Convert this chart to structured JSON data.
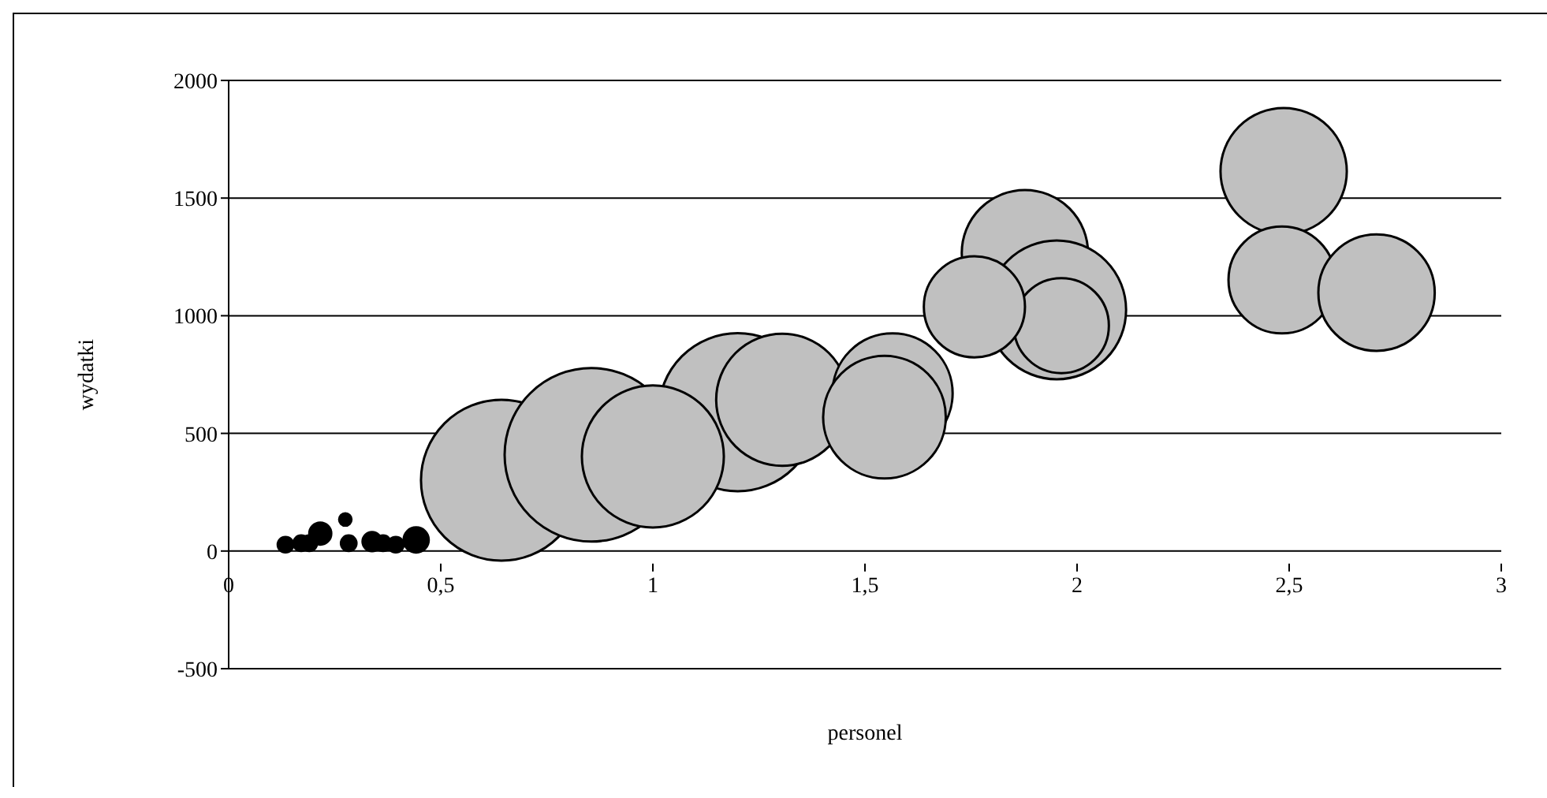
{
  "chart_data": {
    "type": "bubble",
    "xlabel": "personel",
    "ylabel": "wydatki",
    "xlim": [
      0,
      3
    ],
    "xticks": [
      {
        "value": 0,
        "label": "0"
      },
      {
        "value": 0.5,
        "label": "0,5"
      },
      {
        "value": 1,
        "label": "1"
      },
      {
        "value": 1.5,
        "label": "1,5"
      },
      {
        "value": 2,
        "label": "2"
      },
      {
        "value": 2.5,
        "label": "2,5"
      },
      {
        "value": 3,
        "label": "3"
      }
    ],
    "ylim": [
      -500,
      2000
    ],
    "yticks": [
      -500,
      0,
      500,
      1000,
      1500,
      2000
    ],
    "grid": "y",
    "series": [
      {
        "color": "#c0c0c0",
        "x": [
          1.2,
          0.643,
          0.855,
          1.0,
          1.305,
          1.565,
          1.546,
          1.877,
          1.952,
          1.963,
          1.758,
          2.487,
          2.483,
          2.706
        ],
        "values": [
          590,
          301,
          409,
          402,
          643,
          670,
          569,
          1266,
          1025,
          958,
          1038,
          1614,
          1152,
          1098
        ],
        "sizes": [
          0.83,
          0.86,
          1,
          0.67,
          0.58,
          0.48,
          0.5,
          0.53,
          0.64,
          0.3,
          0.34,
          0.53,
          0.38,
          0.45
        ]
      },
      {
        "color": "#000000",
        "x": [
          0.134,
          0.171,
          0.19,
          0.216,
          0.275,
          0.283,
          0.338,
          0.364,
          0.394,
          0.442
        ],
        "values": [
          27,
          33,
          33,
          74,
          134,
          33,
          40,
          33,
          27,
          47
        ],
        "sizes": [
          0.008,
          0.008,
          0.008,
          0.016,
          0.005,
          0.008,
          0.012,
          0.008,
          0.008,
          0.021
        ]
      }
    ]
  }
}
